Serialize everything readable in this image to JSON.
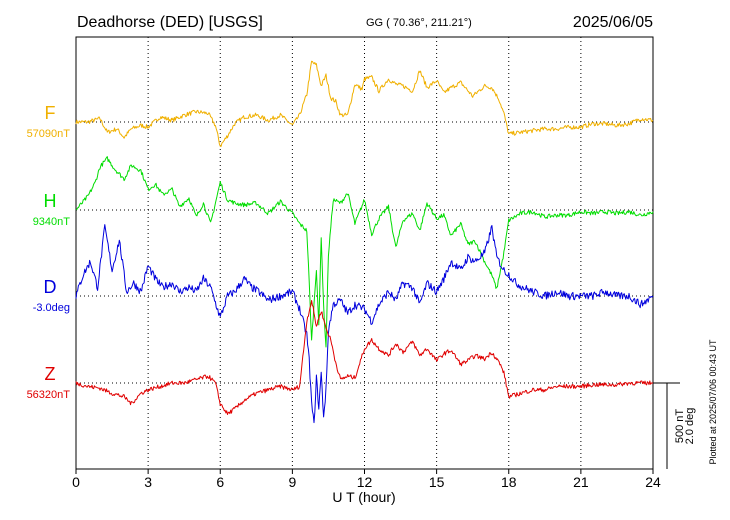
{
  "header": {
    "station": "Deadhorse (DED)  [USGS]",
    "coords": "GG ( 70.36°, 211.21°)",
    "date": "2025/06/05"
  },
  "footer": {
    "plotted_note": "Plotted at 2025/07/06 00:43 UT"
  },
  "chart_data": {
    "type": "line",
    "title": "Deadhorse (DED)  [USGS]",
    "xlabel": "U T (hour)",
    "xlim": [
      0,
      24
    ],
    "x_ticks": [
      "0",
      "3",
      "6",
      "9",
      "12",
      "15",
      "18",
      "21",
      "24"
    ],
    "grid": true,
    "scale_bar": {
      "label_nT": "500 nT",
      "label_deg": "2.0 deg"
    },
    "series": [
      {
        "name": "F",
        "baseline_label": "57090nT",
        "color": "#f0b000",
        "x": [
          0,
          0.5,
          1,
          1.3,
          1.7,
          2,
          2.3,
          2.7,
          3,
          3.5,
          4,
          4.5,
          5,
          5.5,
          5.8,
          6,
          6.3,
          6.6,
          7,
          7.5,
          8,
          8.5,
          9,
          9.3,
          9.6,
          9.8,
          10,
          10.2,
          10.4,
          10.6,
          10.8,
          11,
          11.3,
          11.6,
          11.9,
          12,
          12.3,
          12.6,
          13,
          13.3,
          13.6,
          14,
          14.3,
          14.6,
          15,
          15.3,
          15.6,
          16,
          16.5,
          17,
          17.3,
          17.6,
          17.8,
          18,
          18.5,
          19,
          19.5,
          20,
          20.5,
          21,
          21.5,
          22,
          22.5,
          23,
          23.5,
          24
        ],
        "y": [
          0,
          0,
          20,
          -60,
          -40,
          -90,
          -40,
          -20,
          -30,
          30,
          10,
          40,
          60,
          50,
          -20,
          -140,
          -80,
          -10,
          30,
          40,
          10,
          40,
          -20,
          40,
          160,
          350,
          330,
          210,
          270,
          140,
          120,
          40,
          40,
          220,
          190,
          250,
          260,
          180,
          250,
          220,
          210,
          180,
          300,
          200,
          240,
          170,
          200,
          230,
          150,
          210,
          200,
          130,
          50,
          -70,
          -60,
          -50,
          -40,
          -40,
          -30,
          -30,
          -10,
          -10,
          -20,
          -10,
          20,
          10
        ]
      },
      {
        "name": "H",
        "baseline_label": "9340nT",
        "color": "#00dd00",
        "x": [
          0,
          0.5,
          0.8,
          1,
          1.3,
          1.6,
          2,
          2.3,
          2.7,
          3,
          3.3,
          3.6,
          4,
          4.3,
          4.7,
          5,
          5.3,
          5.6,
          6,
          6.3,
          6.6,
          7,
          7.5,
          8,
          8.5,
          9,
          9.3,
          9.6,
          9.7,
          9.8,
          10,
          10.1,
          10.2,
          10.3,
          10.4,
          10.5,
          10.7,
          11,
          11.3,
          11.6,
          12,
          12.3,
          12.6,
          13,
          13.3,
          13.6,
          14,
          14.3,
          14.6,
          15,
          15.3,
          15.6,
          16,
          16.3,
          16.6,
          17,
          17.3,
          17.5,
          17.8,
          18,
          18.5,
          19,
          19.5,
          20,
          20.5,
          21,
          21.5,
          22,
          22.5,
          23,
          23.5,
          24
        ],
        "y": [
          0,
          80,
          160,
          250,
          300,
          240,
          180,
          260,
          230,
          120,
          150,
          90,
          120,
          20,
          70,
          -40,
          40,
          -80,
          160,
          60,
          40,
          30,
          40,
          -20,
          50,
          -20,
          -80,
          -120,
          -420,
          -760,
          -340,
          -680,
          -150,
          -560,
          -800,
          -260,
          60,
          40,
          100,
          -80,
          60,
          -140,
          -50,
          20,
          -220,
          -60,
          -20,
          -120,
          40,
          -50,
          -30,
          -150,
          -80,
          -200,
          -180,
          -300,
          -380,
          -460,
          -250,
          -60,
          -20,
          -10,
          -40,
          -30,
          -30,
          -10,
          -20,
          -10,
          -20,
          -10,
          -30,
          -10
        ]
      },
      {
        "name": "D",
        "baseline_label": "-3.0deg",
        "color": "#0000dd",
        "x": [
          0,
          0.3,
          0.6,
          0.9,
          1.2,
          1.5,
          1.8,
          2.1,
          2.4,
          2.7,
          3,
          3.3,
          3.6,
          4,
          4.3,
          4.7,
          5,
          5.3,
          5.6,
          6,
          6.3,
          6.6,
          7,
          7.3,
          7.6,
          8,
          8.5,
          9,
          9.3,
          9.6,
          9.7,
          9.8,
          9.9,
          10,
          10.1,
          10.2,
          10.3,
          10.4,
          10.5,
          10.7,
          11,
          11.3,
          11.6,
          12,
          12.3,
          12.6,
          13,
          13.3,
          13.6,
          14,
          14.3,
          14.6,
          15,
          15.3,
          15.6,
          16,
          16.3,
          16.6,
          17,
          17.3,
          17.5,
          17.8,
          18,
          18.3,
          18.6,
          19,
          19.5,
          20,
          20.5,
          21,
          21.5,
          22,
          22.5,
          23,
          23.5,
          24
        ],
        "y": [
          0,
          0.5,
          0.8,
          0.2,
          1.6,
          0.6,
          1.3,
          0.1,
          0.3,
          0.1,
          0.7,
          0.4,
          0.2,
          0.3,
          0.1,
          0.2,
          0.1,
          0.4,
          0.2,
          -0.5,
          0,
          0.1,
          0.4,
          0.2,
          0.1,
          -0.1,
          0,
          0.1,
          -0.3,
          -0.9,
          -1.5,
          -2.5,
          -3,
          -1.9,
          -2.6,
          -1.8,
          -2.8,
          -2.2,
          -0.8,
          -0.2,
          -0.1,
          -0.4,
          -0.2,
          -0.3,
          -0.6,
          -0.2,
          0.1,
          -0.1,
          0.3,
          0.2,
          -0.2,
          0.3,
          0.1,
          0.4,
          0.8,
          0.6,
          0.9,
          0.8,
          1.0,
          1.6,
          0.9,
          0.6,
          0.5,
          0.3,
          0.2,
          0.1,
          0,
          0.1,
          0,
          0,
          0,
          0.1,
          0,
          0,
          -0.2,
          0
        ]
      },
      {
        "name": "Z",
        "baseline_label": "56320nT",
        "color": "#e00000",
        "x": [
          0,
          0.5,
          1,
          1.5,
          2,
          2.3,
          2.7,
          3,
          3.5,
          4,
          4.5,
          5,
          5.5,
          5.8,
          6,
          6.3,
          6.7,
          7,
          7.5,
          8,
          8.5,
          9,
          9.3,
          9.6,
          9.8,
          10,
          10.2,
          10.4,
          10.6,
          10.8,
          11,
          11.3,
          11.6,
          12,
          12.3,
          12.6,
          13,
          13.3,
          13.6,
          14,
          14.3,
          14.6,
          15,
          15.3,
          15.6,
          16,
          16.3,
          16.6,
          17,
          17.3,
          17.6,
          17.8,
          18,
          18.5,
          19,
          19.5,
          20,
          20.5,
          21,
          21.5,
          22,
          22.5,
          23,
          23.5,
          24
        ],
        "y": [
          0,
          -20,
          -30,
          -60,
          -80,
          -120,
          -60,
          -40,
          -20,
          0,
          0,
          20,
          40,
          0,
          -120,
          -180,
          -140,
          -100,
          -60,
          -40,
          -20,
          -40,
          -20,
          360,
          480,
          330,
          420,
          320,
          250,
          120,
          20,
          40,
          30,
          200,
          250,
          200,
          160,
          230,
          180,
          240,
          160,
          200,
          130,
          170,
          190,
          110,
          130,
          160,
          140,
          180,
          120,
          60,
          -80,
          -60,
          -40,
          -40,
          -20,
          -20,
          -20,
          -10,
          -10,
          -10,
          0,
          0,
          0
        ]
      }
    ]
  }
}
